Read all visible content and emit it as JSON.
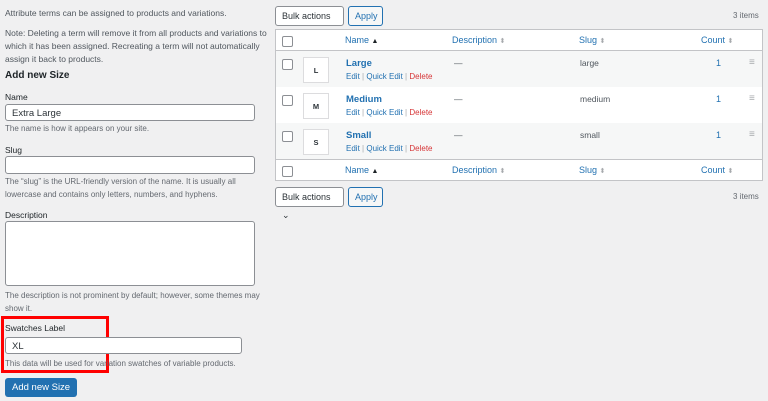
{
  "form": {
    "intro": "Attribute terms can be assigned to products and variations.",
    "note": "Note: Deleting a term will remove it from all products and variations to which it has been assigned. Recreating a term will not automatically assign it back to products.",
    "heading": "Add new Size",
    "name_label": "Name",
    "name_value": "Extra Large",
    "name_hint": "The name is how it appears on your site.",
    "slug_label": "Slug",
    "slug_value": "",
    "slug_hint": "The “slug” is the URL-friendly version of the name. It is usually all lowercase and contains only letters, numbers, and hyphens.",
    "desc_label": "Description",
    "desc_value": "",
    "desc_hint": "The description is not prominent by default; however, some themes may show it.",
    "swatch_label": "Swatches Label",
    "swatch_value": "XL",
    "swatch_hint": "This data will be used for variation swatches of variable products.",
    "submit": "Add new Size",
    "highlight_color": "#ff0000"
  },
  "toolbar": {
    "bulk": "Bulk actions",
    "apply": "Apply",
    "count": "3 items"
  },
  "table": {
    "columns": {
      "name": "Name",
      "description": "Description",
      "slug": "Slug",
      "count": "Count"
    },
    "sort_icon": "sort-arrows-icon",
    "actions": {
      "edit": "Edit",
      "quick_edit": "Quick Edit",
      "delete": "Delete",
      "sep": "|"
    },
    "rows": [
      {
        "swatch": "L",
        "name": "Large",
        "description": "—",
        "slug": "large",
        "count": "1"
      },
      {
        "swatch": "M",
        "name": "Medium",
        "description": "—",
        "slug": "medium",
        "count": "1"
      },
      {
        "swatch": "S",
        "name": "Small",
        "description": "—",
        "slug": "small",
        "count": "1"
      }
    ]
  }
}
